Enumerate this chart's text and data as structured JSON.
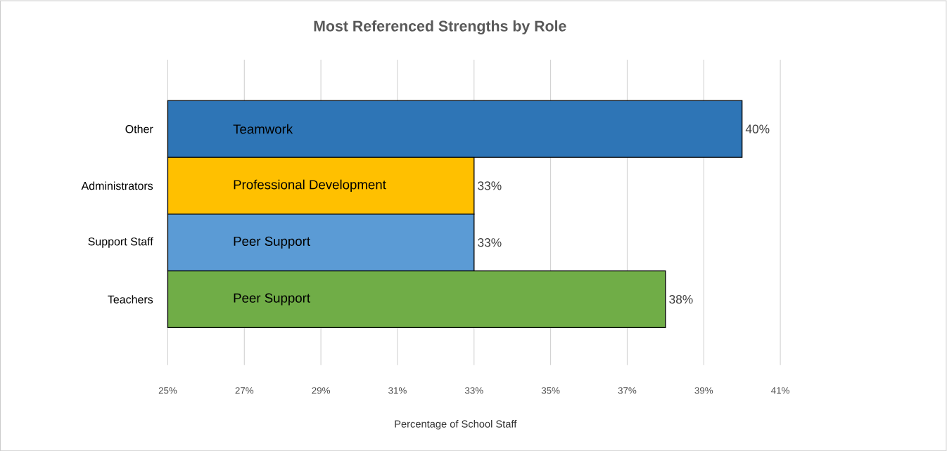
{
  "chart_data": {
    "type": "bar",
    "orientation": "horizontal",
    "title": "Most Referenced Strengths by Role",
    "xlabel": "Percentage of School Staff",
    "categories": [
      "Other",
      "Administrators",
      "Support Staff",
      "Teachers"
    ],
    "values": [
      40,
      33,
      33,
      38
    ],
    "colors": [
      "#2e75b6",
      "#ffc000",
      "#5b9bd5",
      "#70ad47"
    ],
    "value_labels": [
      "40%",
      "33%",
      "33%",
      "38%"
    ],
    "annotations": [
      "Teamwork",
      "Professional Development",
      "Peer Support",
      "Peer Support"
    ],
    "xlim": [
      25,
      41
    ],
    "xticks": [
      {
        "value": 25,
        "label": "25%"
      },
      {
        "value": 27,
        "label": "27%"
      },
      {
        "value": 29,
        "label": "29%"
      },
      {
        "value": 31,
        "label": "31%"
      },
      {
        "value": 33,
        "label": "33%"
      },
      {
        "value": 35,
        "label": "35%"
      },
      {
        "value": 37,
        "label": "37%"
      },
      {
        "value": 39,
        "label": "39%"
      },
      {
        "value": 41,
        "label": "41%"
      }
    ],
    "grid": "x"
  }
}
